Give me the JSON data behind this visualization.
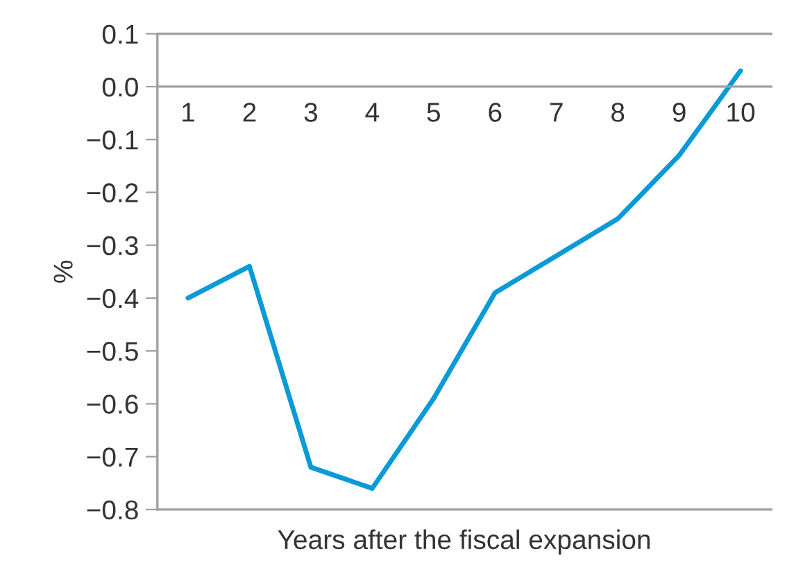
{
  "chart_data": {
    "type": "line",
    "xlabel": "Years after the fiscal expansion",
    "ylabel": "%",
    "categories": [
      "1",
      "2",
      "3",
      "4",
      "5",
      "6",
      "7",
      "8",
      "9",
      "10"
    ],
    "series": [
      {
        "color": "#0a9ad7",
        "values": [
          -0.4,
          -0.34,
          -0.72,
          -0.76,
          -0.59,
          -0.39,
          -0.32,
          -0.25,
          -0.13,
          0.03
        ]
      }
    ],
    "ylim": [
      -0.8,
      0.1
    ],
    "yticks": [
      {
        "value": 0.1,
        "label": "0.1"
      },
      {
        "value": 0.0,
        "label": "0.0"
      },
      {
        "value": -0.1,
        "label": "−0.1"
      },
      {
        "value": -0.2,
        "label": "−0.2"
      },
      {
        "value": -0.3,
        "label": "−0.3"
      },
      {
        "value": -0.4,
        "label": "−0.4"
      },
      {
        "value": -0.5,
        "label": "−0.5"
      },
      {
        "value": -0.6,
        "label": "−0.6"
      },
      {
        "value": -0.7,
        "label": "−0.7"
      },
      {
        "value": -0.8,
        "label": "−0.8"
      }
    ],
    "grid": false,
    "legend": false,
    "marker": "none",
    "line_style": "solid"
  }
}
